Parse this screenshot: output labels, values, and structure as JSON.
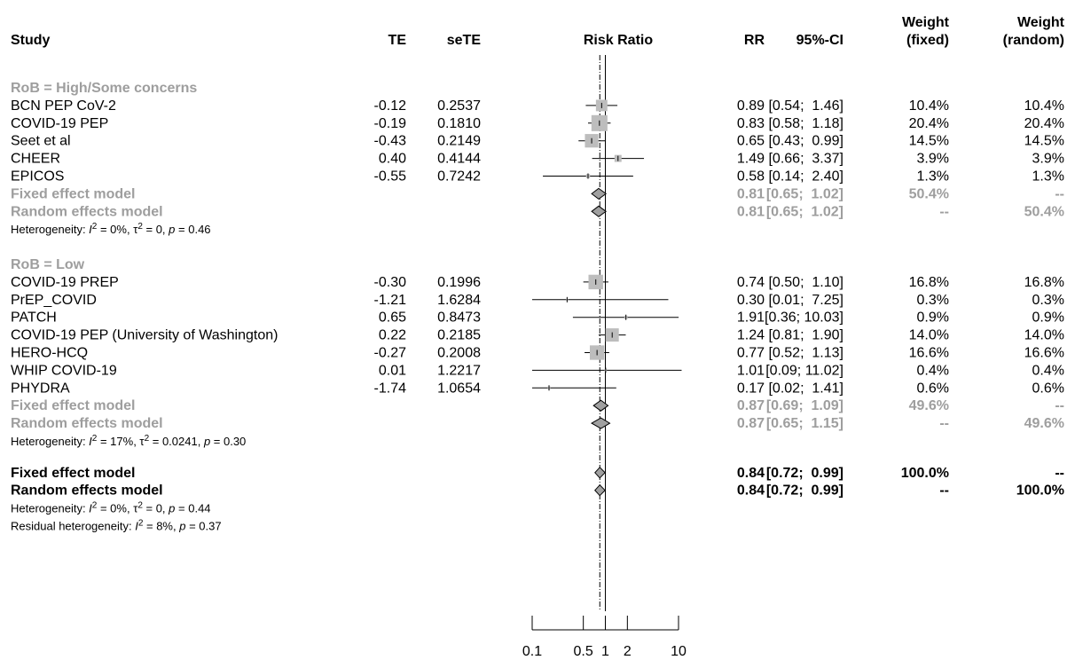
{
  "chart_data": {
    "type": "forest",
    "measure": "Risk Ratio",
    "scale": "log",
    "x_ticks": [
      0.1,
      0.5,
      1,
      2,
      10
    ],
    "x_tick_labels": [
      "0.1",
      "0.5",
      "1",
      "2",
      "10"
    ],
    "xlim": [
      0.1,
      10
    ],
    "reference_line": 1,
    "pooled_line": 0.84,
    "columns": {
      "study": "Study",
      "te": "TE",
      "sete": "seTE",
      "plot": "Risk Ratio",
      "rr": "RR",
      "ci": "95%-CI",
      "w_fixed": [
        "Weight",
        "(fixed)"
      ],
      "w_random": [
        "Weight",
        "(random)"
      ]
    },
    "subgroups": [
      {
        "label": "RoB = High/Some concerns",
        "studies": [
          {
            "name": "BCN PEP CoV-2",
            "te": "-0.12",
            "sete": "0.2537",
            "rr": 0.89,
            "lo": 0.54,
            "hi": 1.46,
            "rr_text": "0.89",
            "ci_text": "[0.54;  1.46]",
            "wf": "10.4%",
            "wr": "10.4%",
            "weight": 10.4
          },
          {
            "name": "COVID-19 PEP",
            "te": "-0.19",
            "sete": "0.1810",
            "rr": 0.83,
            "lo": 0.58,
            "hi": 1.18,
            "rr_text": "0.83",
            "ci_text": "[0.58;  1.18]",
            "wf": "20.4%",
            "wr": "20.4%",
            "weight": 20.4
          },
          {
            "name": "Seet et al",
            "te": "-0.43",
            "sete": "0.2149",
            "rr": 0.65,
            "lo": 0.43,
            "hi": 0.99,
            "rr_text": "0.65",
            "ci_text": "[0.43;  0.99]",
            "wf": "14.5%",
            "wr": "14.5%",
            "weight": 14.5
          },
          {
            "name": "CHEER",
            "te": "0.40",
            "sete": "0.4144",
            "rr": 1.49,
            "lo": 0.66,
            "hi": 3.37,
            "rr_text": "1.49",
            "ci_text": "[0.66;  3.37]",
            "wf": "3.9%",
            "wr": "3.9%",
            "weight": 3.9
          },
          {
            "name": "EPICOS",
            "te": "-0.55",
            "sete": "0.7242",
            "rr": 0.58,
            "lo": 0.14,
            "hi": 2.4,
            "rr_text": "0.58",
            "ci_text": "[0.14;  2.40]",
            "wf": "1.3%",
            "wr": "1.3%",
            "weight": 1.3
          }
        ],
        "fixed": {
          "label": "Fixed effect model",
          "rr": 0.81,
          "lo": 0.65,
          "hi": 1.02,
          "rr_text": "0.81",
          "ci_text": "[0.65;  1.02]",
          "wf": "50.4%",
          "wr": "--"
        },
        "random": {
          "label": "Random effects model",
          "rr": 0.81,
          "lo": 0.65,
          "hi": 1.02,
          "rr_text": "0.81",
          "ci_text": "[0.65;  1.02]",
          "wf": "--",
          "wr": "50.4%"
        },
        "heterogeneity": {
          "prefix": "Heterogeneity: ",
          "i_sym": "I",
          "sup": "2",
          "i2": " = 0%, ",
          "tau": "τ",
          "tau2": " = 0, ",
          "p_sym": "p",
          "p": " = 0.46"
        }
      },
      {
        "label": "RoB = Low",
        "studies": [
          {
            "name": "COVID-19 PREP",
            "te": "-0.30",
            "sete": "0.1996",
            "rr": 0.74,
            "lo": 0.5,
            "hi": 1.1,
            "rr_text": "0.74",
            "ci_text": "[0.50;  1.10]",
            "wf": "16.8%",
            "wr": "16.8%",
            "weight": 16.8
          },
          {
            "name": "PrEP_COVID",
            "te": "-1.21",
            "sete": "1.6284",
            "rr": 0.3,
            "lo": 0.01,
            "hi": 7.25,
            "rr_text": "0.30",
            "ci_text": "[0.01;  7.25]",
            "wf": "0.3%",
            "wr": "0.3%",
            "weight": 0.3
          },
          {
            "name": "PATCH",
            "te": "0.65",
            "sete": "0.8473",
            "rr": 1.91,
            "lo": 0.36,
            "hi": 10.03,
            "rr_text": "1.91",
            "ci_text": "[0.36; 10.03]",
            "wf": "0.9%",
            "wr": "0.9%",
            "weight": 0.9
          },
          {
            "name": "COVID-19 PEP (University of Washington)",
            "te": "0.22",
            "sete": "0.2185",
            "rr": 1.24,
            "lo": 0.81,
            "hi": 1.9,
            "rr_text": "1.24",
            "ci_text": "[0.81;  1.90]",
            "wf": "14.0%",
            "wr": "14.0%",
            "weight": 14.0
          },
          {
            "name": "HERO-HCQ",
            "te": "-0.27",
            "sete": "0.2008",
            "rr": 0.77,
            "lo": 0.52,
            "hi": 1.13,
            "rr_text": "0.77",
            "ci_text": "[0.52;  1.13]",
            "wf": "16.6%",
            "wr": "16.6%",
            "weight": 16.6
          },
          {
            "name": "WHIP COVID-19",
            "te": "0.01",
            "sete": "1.2217",
            "rr": 1.01,
            "lo": 0.09,
            "hi": 11.02,
            "rr_text": "1.01",
            "ci_text": "[0.09; 11.02]",
            "wf": "0.4%",
            "wr": "0.4%",
            "weight": 0.4
          },
          {
            "name": "PHYDRA",
            "te": "-1.74",
            "sete": "1.0654",
            "rr": 0.17,
            "lo": 0.02,
            "hi": 1.41,
            "rr_text": "0.17",
            "ci_text": "[0.02;  1.41]",
            "wf": "0.6%",
            "wr": "0.6%",
            "weight": 0.6
          }
        ],
        "fixed": {
          "label": "Fixed effect model",
          "rr": 0.87,
          "lo": 0.69,
          "hi": 1.09,
          "rr_text": "0.87",
          "ci_text": "[0.69;  1.09]",
          "wf": "49.6%",
          "wr": "--"
        },
        "random": {
          "label": "Random effects model",
          "rr": 0.87,
          "lo": 0.65,
          "hi": 1.15,
          "rr_text": "0.87",
          "ci_text": "[0.65;  1.15]",
          "wf": "--",
          "wr": "49.6%"
        },
        "heterogeneity": {
          "prefix": "Heterogeneity: ",
          "i_sym": "I",
          "sup": "2",
          "i2": " = 17%, ",
          "tau": "τ",
          "tau2": " = 0.0241, ",
          "p_sym": "p",
          "p": " = 0.30"
        }
      }
    ],
    "overall": {
      "fixed": {
        "label": "Fixed effect model",
        "rr": 0.84,
        "lo": 0.72,
        "hi": 0.99,
        "rr_text": "0.84",
        "ci_text": "[0.72;  0.99]",
        "wf": "100.0%",
        "wr": "--"
      },
      "random": {
        "label": "Random effects model",
        "rr": 0.84,
        "lo": 0.72,
        "hi": 0.99,
        "rr_text": "0.84",
        "ci_text": "[0.72;  0.99]",
        "wf": "--",
        "wr": "100.0%"
      },
      "heterogeneity": {
        "prefix": "Heterogeneity: ",
        "i_sym": "I",
        "sup": "2",
        "i2": " = 0%, ",
        "tau": "τ",
        "tau2": " = 0, ",
        "p_sym": "p",
        "p": " = 0.44"
      },
      "residual": {
        "prefix": "Residual heterogeneity: ",
        "i_sym": "I",
        "sup": "2",
        "i2": " = 8%, ",
        "p_sym": "p",
        "p": " = 0.37"
      }
    },
    "colors": {
      "text": "#000000",
      "subgroup_text": "#9e9e9e",
      "square": "#bdbdbd",
      "diamond_fill": "#a0a0a0",
      "line": "#000000"
    }
  }
}
